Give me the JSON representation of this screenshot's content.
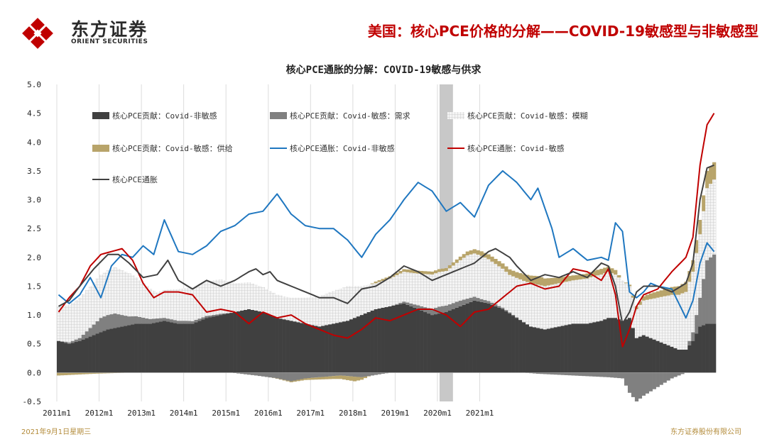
{
  "header": {
    "logo_cn": "东方证券",
    "logo_en": "ORIENT SECURITIES",
    "title": "美国：核心PCE价格的分解——COVID-19敏感型与非敏感型",
    "brand_color": "#c00000"
  },
  "footer": {
    "date": "2021年9月1日星期三",
    "company": "东方证券股份有限公司"
  },
  "chart_data": {
    "type": "bar",
    "title": "核心PCE通胀的分解：COVID-19敏感与供求",
    "xlabel": "",
    "ylabel": "",
    "ylim": [
      -0.5,
      5.0
    ],
    "yticks": [
      "5.0",
      "4.5",
      "4.0",
      "3.5",
      "3.0",
      "2.5",
      "2.0",
      "1.5",
      "1.0",
      "0.5",
      "0.0",
      "-0.5"
    ],
    "xticks": [
      "2011m1",
      "2012m1",
      "2013m1",
      "2014m1",
      "2015m1",
      "2016m1",
      "2017m1",
      "2018m1",
      "2019m1",
      "2020m1",
      "2021m1"
    ],
    "x_start": "2011m1",
    "shaded_period": [
      "2020m2",
      "2020m4"
    ],
    "grid": "vertical",
    "legend_position": "top-left",
    "colors": {
      "non_sensitive_bar": "#404040",
      "demand_bar": "#808080",
      "ambiguous_bar": "#e6e6e6",
      "supply_bar": "#b8a46a",
      "non_sensitive_line": "#1f77c0",
      "sensitive_line": "#c00000",
      "core_line": "#404040",
      "shade": "#c8c8c8"
    },
    "legend": [
      {
        "name": "核心PCE贡献：Covid-非敏感",
        "kind": "bar",
        "color": "#404040"
      },
      {
        "name": "核心PCE贡献：Covid-敏感：需求",
        "kind": "bar",
        "color": "#808080"
      },
      {
        "name": "核心PCE贡献：Covid-敏感：模糊",
        "kind": "bar-hatch",
        "color": "#e6e6e6"
      },
      {
        "name": "核心PCE贡献：Covid-敏感：供给",
        "kind": "bar",
        "color": "#b8a46a"
      },
      {
        "name": "核心PCE通胀：Covid-非敏感",
        "kind": "line",
        "color": "#1f77c0"
      },
      {
        "name": "核心PCE通胀：Covid-敏感",
        "kind": "line",
        "color": "#c00000"
      },
      {
        "name": "核心PCE通胀",
        "kind": "line",
        "color": "#404040"
      }
    ],
    "anchors": {
      "non_sensitive_bar": [
        [
          0,
          0.55
        ],
        [
          3,
          0.5
        ],
        [
          6,
          0.55
        ],
        [
          10,
          0.65
        ],
        [
          14,
          0.75
        ],
        [
          18,
          0.8
        ],
        [
          22,
          0.85
        ],
        [
          26,
          0.85
        ],
        [
          30,
          0.9
        ],
        [
          34,
          0.85
        ],
        [
          38,
          0.85
        ],
        [
          42,
          0.95
        ],
        [
          46,
          1.0
        ],
        [
          50,
          1.05
        ],
        [
          54,
          1.1
        ],
        [
          58,
          1.05
        ],
        [
          62,
          0.95
        ],
        [
          66,
          0.9
        ],
        [
          70,
          0.85
        ],
        [
          74,
          0.8
        ],
        [
          78,
          0.85
        ],
        [
          82,
          0.9
        ],
        [
          86,
          1.0
        ],
        [
          90,
          1.1
        ],
        [
          94,
          1.15
        ],
        [
          98,
          1.2
        ],
        [
          102,
          1.1
        ],
        [
          106,
          1.0
        ],
        [
          110,
          1.05
        ],
        [
          114,
          1.15
        ],
        [
          118,
          1.25
        ],
        [
          122,
          1.2
        ],
        [
          126,
          1.1
        ],
        [
          130,
          0.95
        ],
        [
          134,
          0.8
        ],
        [
          138,
          0.75
        ],
        [
          142,
          0.8
        ],
        [
          146,
          0.85
        ],
        [
          150,
          0.85
        ],
        [
          154,
          0.9
        ],
        [
          156,
          0.95
        ],
        [
          158,
          0.95
        ],
        [
          160,
          0.9
        ],
        [
          162,
          0.95
        ],
        [
          164,
          0.6
        ],
        [
          166,
          0.65
        ],
        [
          168,
          0.6
        ],
        [
          170,
          0.55
        ],
        [
          172,
          0.5
        ],
        [
          174,
          0.45
        ],
        [
          176,
          0.4
        ],
        [
          178,
          0.4
        ],
        [
          180,
          0.55
        ],
        [
          182,
          0.8
        ],
        [
          184,
          0.85
        ],
        [
          186,
          0.85
        ]
      ],
      "demand_bar": [
        [
          0,
          0.0
        ],
        [
          6,
          0.05
        ],
        [
          12,
          0.25
        ],
        [
          16,
          0.25
        ],
        [
          20,
          0.15
        ],
        [
          26,
          0.08
        ],
        [
          30,
          0.05
        ],
        [
          36,
          0.05
        ],
        [
          46,
          0.02
        ],
        [
          56,
          -0.05
        ],
        [
          62,
          -0.1
        ],
        [
          66,
          -0.15
        ],
        [
          70,
          -0.1
        ],
        [
          74,
          -0.08
        ],
        [
          80,
          -0.05
        ],
        [
          86,
          -0.08
        ],
        [
          92,
          -0.02
        ],
        [
          100,
          0.05
        ],
        [
          108,
          0.12
        ],
        [
          114,
          0.1
        ],
        [
          120,
          0.05
        ],
        [
          128,
          0.02
        ],
        [
          136,
          -0.02
        ],
        [
          146,
          -0.05
        ],
        [
          156,
          -0.08
        ],
        [
          160,
          -0.1
        ],
        [
          162,
          -0.35
        ],
        [
          164,
          -0.5
        ],
        [
          166,
          -0.4
        ],
        [
          170,
          -0.25
        ],
        [
          174,
          -0.1
        ],
        [
          178,
          0.0
        ],
        [
          180,
          0.15
        ],
        [
          182,
          0.5
        ],
        [
          184,
          1.1
        ],
        [
          186,
          1.2
        ]
      ],
      "ambiguous_bar": [
        [
          0,
          0.6
        ],
        [
          6,
          0.7
        ],
        [
          12,
          0.75
        ],
        [
          16,
          0.8
        ],
        [
          20,
          0.75
        ],
        [
          24,
          0.6
        ],
        [
          28,
          0.45
        ],
        [
          34,
          0.55
        ],
        [
          40,
          0.6
        ],
        [
          46,
          0.6
        ],
        [
          50,
          0.5
        ],
        [
          56,
          0.45
        ],
        [
          62,
          0.4
        ],
        [
          66,
          0.4
        ],
        [
          70,
          0.45
        ],
        [
          76,
          0.55
        ],
        [
          82,
          0.6
        ],
        [
          86,
          0.5
        ],
        [
          90,
          0.45
        ],
        [
          96,
          0.5
        ],
        [
          102,
          0.55
        ],
        [
          106,
          0.6
        ],
        [
          110,
          0.6
        ],
        [
          116,
          0.75
        ],
        [
          120,
          0.75
        ],
        [
          124,
          0.7
        ],
        [
          128,
          0.65
        ],
        [
          134,
          0.75
        ],
        [
          140,
          0.75
        ],
        [
          146,
          0.75
        ],
        [
          152,
          0.8
        ],
        [
          156,
          0.8
        ],
        [
          160,
          0.7
        ],
        [
          162,
          0.55
        ],
        [
          164,
          0.5
        ],
        [
          166,
          0.6
        ],
        [
          170,
          0.75
        ],
        [
          174,
          0.9
        ],
        [
          178,
          1.0
        ],
        [
          180,
          1.05
        ],
        [
          182,
          1.1
        ],
        [
          184,
          1.25
        ],
        [
          186,
          1.3
        ]
      ],
      "supply_bar": [
        [
          0,
          -0.05
        ],
        [
          10,
          -0.02
        ],
        [
          20,
          0.0
        ],
        [
          40,
          0.0
        ],
        [
          60,
          0.0
        ],
        [
          78,
          -0.05
        ],
        [
          84,
          -0.08
        ],
        [
          90,
          0.03
        ],
        [
          100,
          0.05
        ],
        [
          110,
          0.05
        ],
        [
          120,
          0.08
        ],
        [
          130,
          0.1
        ],
        [
          136,
          0.15
        ],
        [
          142,
          0.1
        ],
        [
          148,
          0.08
        ],
        [
          154,
          0.1
        ],
        [
          158,
          0.08
        ],
        [
          160,
          0.0
        ],
        [
          164,
          0.05
        ],
        [
          168,
          0.1
        ],
        [
          172,
          0.12
        ],
        [
          176,
          0.15
        ],
        [
          180,
          0.2
        ],
        [
          182,
          0.25
        ],
        [
          184,
          0.3
        ],
        [
          186,
          0.3
        ]
      ],
      "core_line": [
        [
          0,
          1.15
        ],
        [
          3,
          1.25
        ],
        [
          6,
          1.5
        ],
        [
          10,
          1.8
        ],
        [
          14,
          2.05
        ],
        [
          17,
          2.05
        ],
        [
          20,
          1.9
        ],
        [
          24,
          1.65
        ],
        [
          28,
          1.7
        ],
        [
          31,
          1.95
        ],
        [
          34,
          1.6
        ],
        [
          38,
          1.45
        ],
        [
          42,
          1.6
        ],
        [
          46,
          1.5
        ],
        [
          50,
          1.6
        ],
        [
          54,
          1.75
        ],
        [
          56,
          1.8
        ],
        [
          58,
          1.7
        ],
        [
          60,
          1.75
        ],
        [
          62,
          1.6
        ],
        [
          66,
          1.5
        ],
        [
          70,
          1.4
        ],
        [
          74,
          1.3
        ],
        [
          78,
          1.3
        ],
        [
          82,
          1.2
        ],
        [
          86,
          1.45
        ],
        [
          90,
          1.5
        ],
        [
          94,
          1.65
        ],
        [
          98,
          1.85
        ],
        [
          102,
          1.75
        ],
        [
          106,
          1.6
        ],
        [
          110,
          1.7
        ],
        [
          114,
          1.8
        ],
        [
          118,
          1.9
        ],
        [
          122,
          2.1
        ],
        [
          124,
          2.15
        ],
        [
          128,
          2.0
        ],
        [
          130,
          1.85
        ],
        [
          134,
          1.6
        ],
        [
          138,
          1.7
        ],
        [
          142,
          1.65
        ],
        [
          146,
          1.75
        ],
        [
          150,
          1.65
        ],
        [
          154,
          1.9
        ],
        [
          156,
          1.85
        ],
        [
          158,
          1.5
        ],
        [
          160,
          0.85
        ],
        [
          162,
          1.05
        ],
        [
          164,
          1.4
        ],
        [
          166,
          1.5
        ],
        [
          170,
          1.5
        ],
        [
          174,
          1.4
        ],
        [
          178,
          1.55
        ],
        [
          180,
          1.9
        ],
        [
          182,
          3.0
        ],
        [
          184,
          3.55
        ],
        [
          186,
          3.6
        ]
      ],
      "non_sensitive_line": [
        [
          0,
          1.35
        ],
        [
          3,
          1.2
        ],
        [
          6,
          1.35
        ],
        [
          9,
          1.65
        ],
        [
          12,
          1.3
        ],
        [
          15,
          1.85
        ],
        [
          18,
          2.05
        ],
        [
          21,
          2.0
        ],
        [
          24,
          2.2
        ],
        [
          27,
          2.05
        ],
        [
          30,
          2.65
        ],
        [
          34,
          2.1
        ],
        [
          38,
          2.05
        ],
        [
          42,
          2.2
        ],
        [
          46,
          2.45
        ],
        [
          50,
          2.55
        ],
        [
          54,
          2.75
        ],
        [
          58,
          2.8
        ],
        [
          62,
          3.1
        ],
        [
          66,
          2.75
        ],
        [
          70,
          2.55
        ],
        [
          74,
          2.5
        ],
        [
          78,
          2.5
        ],
        [
          82,
          2.3
        ],
        [
          86,
          2.0
        ],
        [
          90,
          2.4
        ],
        [
          94,
          2.65
        ],
        [
          98,
          3.0
        ],
        [
          102,
          3.3
        ],
        [
          106,
          3.15
        ],
        [
          110,
          2.8
        ],
        [
          114,
          2.95
        ],
        [
          118,
          2.7
        ],
        [
          122,
          3.25
        ],
        [
          126,
          3.5
        ],
        [
          130,
          3.3
        ],
        [
          134,
          3.0
        ],
        [
          136,
          3.2
        ],
        [
          140,
          2.5
        ],
        [
          142,
          2.0
        ],
        [
          146,
          2.15
        ],
        [
          150,
          1.95
        ],
        [
          154,
          2.0
        ],
        [
          156,
          1.95
        ],
        [
          158,
          2.6
        ],
        [
          160,
          2.45
        ],
        [
          162,
          1.4
        ],
        [
          164,
          1.3
        ],
        [
          166,
          1.4
        ],
        [
          168,
          1.55
        ],
        [
          170,
          1.5
        ],
        [
          174,
          1.45
        ],
        [
          176,
          1.2
        ],
        [
          178,
          0.95
        ],
        [
          180,
          1.25
        ],
        [
          182,
          1.9
        ],
        [
          184,
          2.25
        ],
        [
          186,
          2.1
        ]
      ],
      "sensitive_line": [
        [
          0,
          1.05
        ],
        [
          3,
          1.3
        ],
        [
          6,
          1.5
        ],
        [
          9,
          1.85
        ],
        [
          12,
          2.05
        ],
        [
          15,
          2.1
        ],
        [
          18,
          2.15
        ],
        [
          21,
          1.95
        ],
        [
          24,
          1.55
        ],
        [
          27,
          1.3
        ],
        [
          30,
          1.4
        ],
        [
          34,
          1.4
        ],
        [
          38,
          1.35
        ],
        [
          42,
          1.05
        ],
        [
          46,
          1.1
        ],
        [
          50,
          1.05
        ],
        [
          54,
          0.85
        ],
        [
          58,
          1.05
        ],
        [
          62,
          0.95
        ],
        [
          66,
          1.0
        ],
        [
          70,
          0.85
        ],
        [
          74,
          0.75
        ],
        [
          78,
          0.65
        ],
        [
          82,
          0.6
        ],
        [
          86,
          0.75
        ],
        [
          90,
          0.95
        ],
        [
          94,
          0.9
        ],
        [
          98,
          1.0
        ],
        [
          102,
          1.1
        ],
        [
          106,
          1.1
        ],
        [
          110,
          1.0
        ],
        [
          114,
          0.8
        ],
        [
          118,
          1.05
        ],
        [
          122,
          1.1
        ],
        [
          126,
          1.3
        ],
        [
          130,
          1.5
        ],
        [
          134,
          1.55
        ],
        [
          138,
          1.45
        ],
        [
          142,
          1.5
        ],
        [
          146,
          1.8
        ],
        [
          150,
          1.75
        ],
        [
          154,
          1.6
        ],
        [
          156,
          1.8
        ],
        [
          158,
          1.35
        ],
        [
          160,
          0.45
        ],
        [
          162,
          0.75
        ],
        [
          164,
          1.15
        ],
        [
          166,
          1.35
        ],
        [
          170,
          1.45
        ],
        [
          174,
          1.75
        ],
        [
          178,
          2.0
        ],
        [
          180,
          2.35
        ],
        [
          182,
          3.6
        ],
        [
          184,
          4.3
        ],
        [
          186,
          4.5
        ]
      ]
    }
  }
}
